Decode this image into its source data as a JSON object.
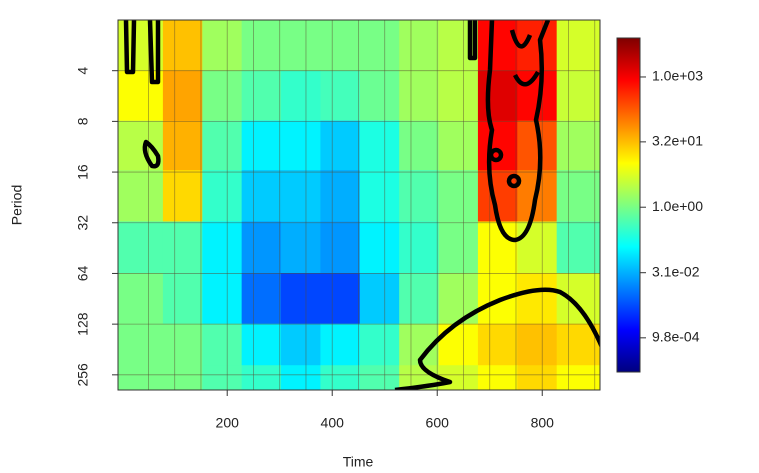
{
  "chart_data": {
    "type": "heatmap",
    "x_label": "Time",
    "y_label": "Period",
    "xlim": [
      -8,
      910
    ],
    "xticks": [
      200,
      400,
      600,
      800
    ],
    "xgrid": [
      50,
      100,
      150,
      200,
      250,
      300,
      350,
      400,
      450,
      500,
      550,
      600,
      650,
      700,
      750,
      800,
      850,
      900
    ],
    "ylim": [
      2,
      315
    ],
    "log_y": true,
    "y_reversed": true,
    "yticks": [
      4,
      8,
      16,
      32,
      64,
      128,
      256
    ],
    "x": [
      40,
      115,
      190,
      265,
      340,
      415,
      490,
      565,
      640,
      715,
      790,
      865
    ],
    "y": [
      2.8,
      5.7,
      11,
      22,
      45,
      90,
      180,
      280
    ],
    "z": [
      [
        5,
        30,
        2,
        1,
        1,
        1,
        1,
        2,
        3,
        800,
        500,
        5
      ],
      [
        10,
        50,
        1,
        0.5,
        0.3,
        0.4,
        0.8,
        2,
        3,
        1500,
        800,
        4
      ],
      [
        3,
        40,
        0.5,
        0.1,
        0.1,
        0.05,
        0.2,
        1,
        2,
        800,
        200,
        2
      ],
      [
        2,
        20,
        0.3,
        0.05,
        0.05,
        0.03,
        0.2,
        0.5,
        1,
        300,
        100,
        1
      ],
      [
        0.5,
        0.5,
        0.1,
        0.02,
        0.03,
        0.02,
        0.1,
        0.3,
        1,
        10,
        5,
        0.5
      ],
      [
        1,
        0.5,
        0.1,
        0.01,
        0.005,
        0.005,
        0.05,
        0.5,
        2,
        10,
        15,
        5
      ],
      [
        1,
        1,
        0.5,
        0.1,
        0.05,
        0.1,
        0.3,
        2,
        10,
        20,
        30,
        20
      ],
      [
        1,
        1,
        0.5,
        0.3,
        0.1,
        0.3,
        0.5,
        3,
        5,
        10,
        20,
        10
      ]
    ],
    "zlim": [
      0.00016,
      7900
    ],
    "log_z": true,
    "zticks": [
      {
        "value": 1000,
        "label": "1.0e+03"
      },
      {
        "value": 32,
        "label": "3.2e+01"
      },
      {
        "value": 1,
        "label": "1.0e+00"
      },
      {
        "value": 0.031,
        "label": "3.1e-02"
      },
      {
        "value": 0.00098,
        "label": "9.8e-04"
      }
    ],
    "palette": [
      "#00007f",
      "#0000ff",
      "#007fff",
      "#00ffff",
      "#7fff7f",
      "#ffff00",
      "#ff7f00",
      "#ff0000",
      "#7f0000"
    ]
  }
}
